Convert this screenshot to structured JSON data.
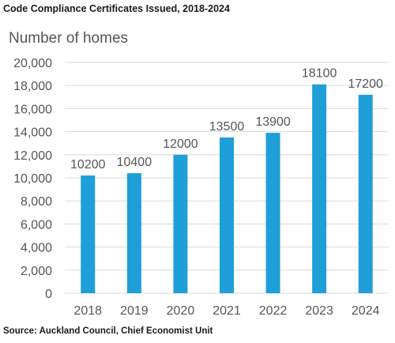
{
  "title": "Code Compliance Certificates Issued, 2018-2024",
  "source": "Source: Auckland Council, Chief Economist Unit",
  "chart_data": {
    "type": "bar",
    "title": "Code Compliance Certificates Issued, 2018-2024",
    "ylabel": "Number of homes",
    "xlabel": "",
    "categories": [
      "2018",
      "2019",
      "2020",
      "2021",
      "2022",
      "2023",
      "2024"
    ],
    "values": [
      10200,
      10400,
      12000,
      13500,
      13900,
      18100,
      17200
    ],
    "data_labels": [
      "10200",
      "10400",
      "12000",
      "13500",
      "13900",
      "18100",
      "17200"
    ],
    "ylim": [
      0,
      20000
    ],
    "yticks": [
      0,
      2000,
      4000,
      6000,
      8000,
      10000,
      12000,
      14000,
      16000,
      18000,
      20000
    ],
    "ytick_labels": [
      "0",
      "2,000",
      "4,000",
      "6,000",
      "8,000",
      "10,000",
      "12,000",
      "14,000",
      "16,000",
      "18,000",
      "20,000"
    ],
    "bar_color": "#1f9fd8",
    "grid": true,
    "legend": "none"
  }
}
